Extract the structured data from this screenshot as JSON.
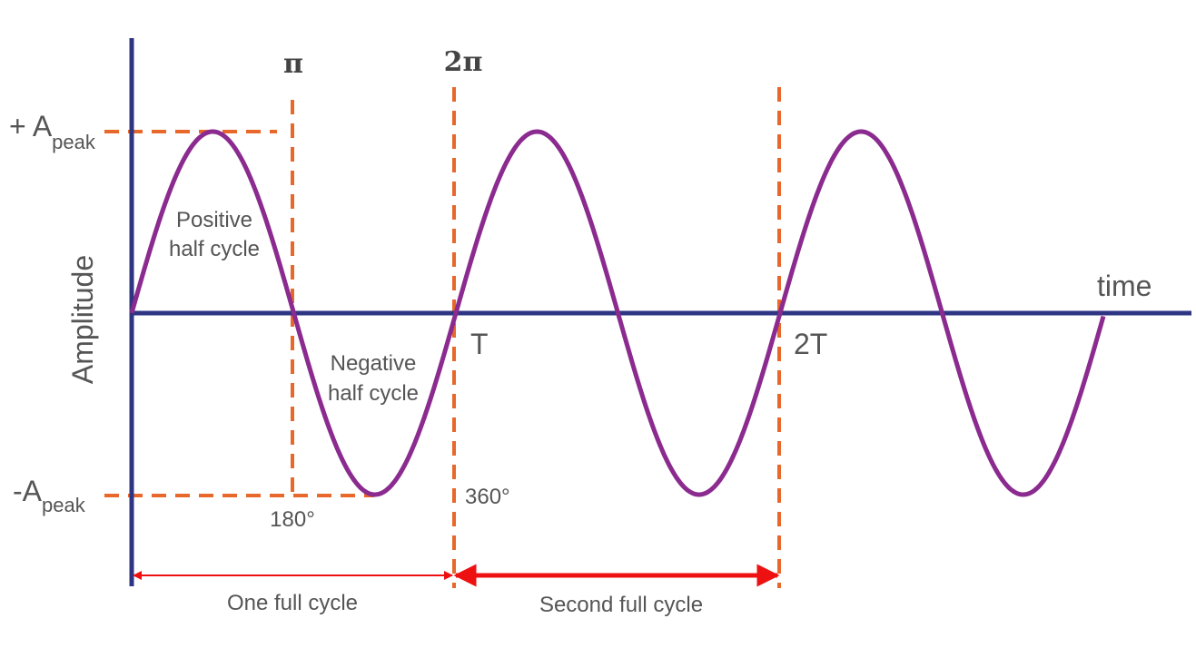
{
  "labels": {
    "pi": "π",
    "two_pi": "2π",
    "plus_a": "+ A",
    "minus_a": "-A",
    "peak_sub": "peak",
    "amplitude": "Amplitude",
    "positive_1": "Positive",
    "positive_2": "half cycle",
    "negative_1": "Negative",
    "negative_2": "half cycle",
    "t": "T",
    "two_t": "2T",
    "time": "time",
    "deg180": "180°",
    "deg360": "360°",
    "one_cycle": "One full cycle",
    "second_cycle": "Second full cycle"
  },
  "wave": {
    "cycles": 3
  },
  "colors": {
    "axis": "#2e3583",
    "wave": "#8b2a8f",
    "guide": "#e8672a",
    "arrow": "#ee1111",
    "text": "#555555"
  }
}
